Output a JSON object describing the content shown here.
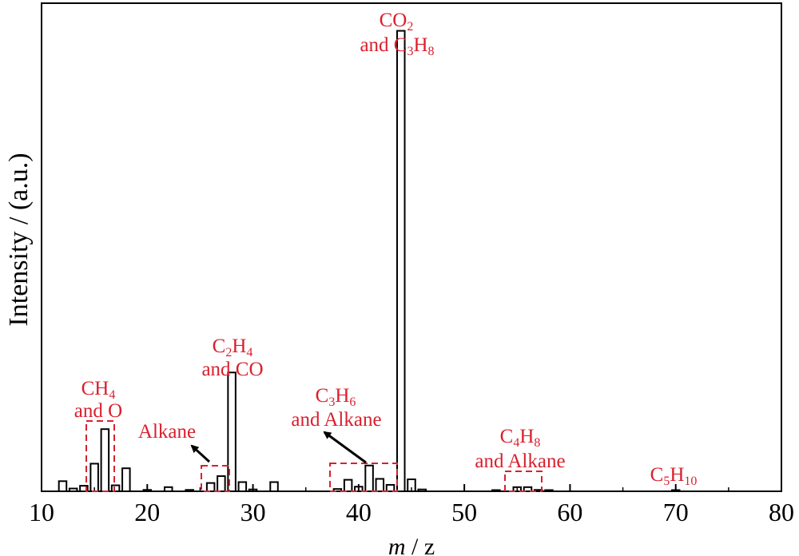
{
  "chart_data": {
    "type": "bar",
    "xlabel_italic": "m",
    "xlabel_rest": " / z",
    "ylabel": "Intensity / (a.u.)",
    "xlim": [
      10,
      80
    ],
    "ylim": [
      0,
      1.06
    ],
    "x_ticks": [
      10,
      20,
      30,
      40,
      50,
      60,
      70,
      80
    ],
    "grid": false,
    "annotation_color": "#d9202e",
    "bar_fill": "#ffffff",
    "bar_stroke": "#000000",
    "bars": [
      {
        "x": 12,
        "y": 0.022
      },
      {
        "x": 13,
        "y": 0.006
      },
      {
        "x": 14,
        "y": 0.012
      },
      {
        "x": 15,
        "y": 0.06
      },
      {
        "x": 16,
        "y": 0.135
      },
      {
        "x": 17,
        "y": 0.013
      },
      {
        "x": 18,
        "y": 0.05
      },
      {
        "x": 20,
        "y": 0.003
      },
      {
        "x": 22,
        "y": 0.009
      },
      {
        "x": 24,
        "y": 0.003
      },
      {
        "x": 26,
        "y": 0.018
      },
      {
        "x": 27,
        "y": 0.033
      },
      {
        "x": 28,
        "y": 0.258
      },
      {
        "x": 29,
        "y": 0.02
      },
      {
        "x": 30,
        "y": 0.004
      },
      {
        "x": 32,
        "y": 0.02
      },
      {
        "x": 38,
        "y": 0.005
      },
      {
        "x": 39,
        "y": 0.025
      },
      {
        "x": 40,
        "y": 0.01
      },
      {
        "x": 41,
        "y": 0.056
      },
      {
        "x": 42,
        "y": 0.027
      },
      {
        "x": 43,
        "y": 0.014
      },
      {
        "x": 44,
        "y": 1.0
      },
      {
        "x": 45,
        "y": 0.026
      },
      {
        "x": 46,
        "y": 0.004
      },
      {
        "x": 53,
        "y": 0.002
      },
      {
        "x": 55,
        "y": 0.009
      },
      {
        "x": 56,
        "y": 0.009
      },
      {
        "x": 57,
        "y": 0.003
      },
      {
        "x": 58,
        "y": 0.001
      },
      {
        "x": 70,
        "y": 0.002
      }
    ],
    "labels": {
      "co2_line1_a": "CO",
      "co2_line1_sub": "2",
      "co2_line2_a": "and C",
      "co2_line2_sub1": "3",
      "co2_line2_b": "H",
      "co2_line2_sub2": "8",
      "c2h4_line1_a": "C",
      "c2h4_line1_sub1": "2",
      "c2h4_line1_b": "H",
      "c2h4_line1_sub2": "4",
      "c2h4_line2": "and CO",
      "ch4_line1_a": "CH",
      "ch4_line1_sub": "4",
      "ch4_line2": "and O",
      "alkane": "Alkane",
      "c3h6_line1_a": "C",
      "c3h6_line1_sub1": "3",
      "c3h6_line1_b": "H",
      "c3h6_line1_sub2": "6",
      "c3h6_line2": "and Alkane",
      "c4h8_line1_a": "C",
      "c4h8_line1_sub1": "4",
      "c4h8_line1_b": "H",
      "c4h8_line1_sub2": "8",
      "c4h8_line2": "and Alkane",
      "c5h10_a": "C",
      "c5h10_sub1": "5",
      "c5h10_b": "H",
      "c5h10_sub2": "10"
    }
  }
}
